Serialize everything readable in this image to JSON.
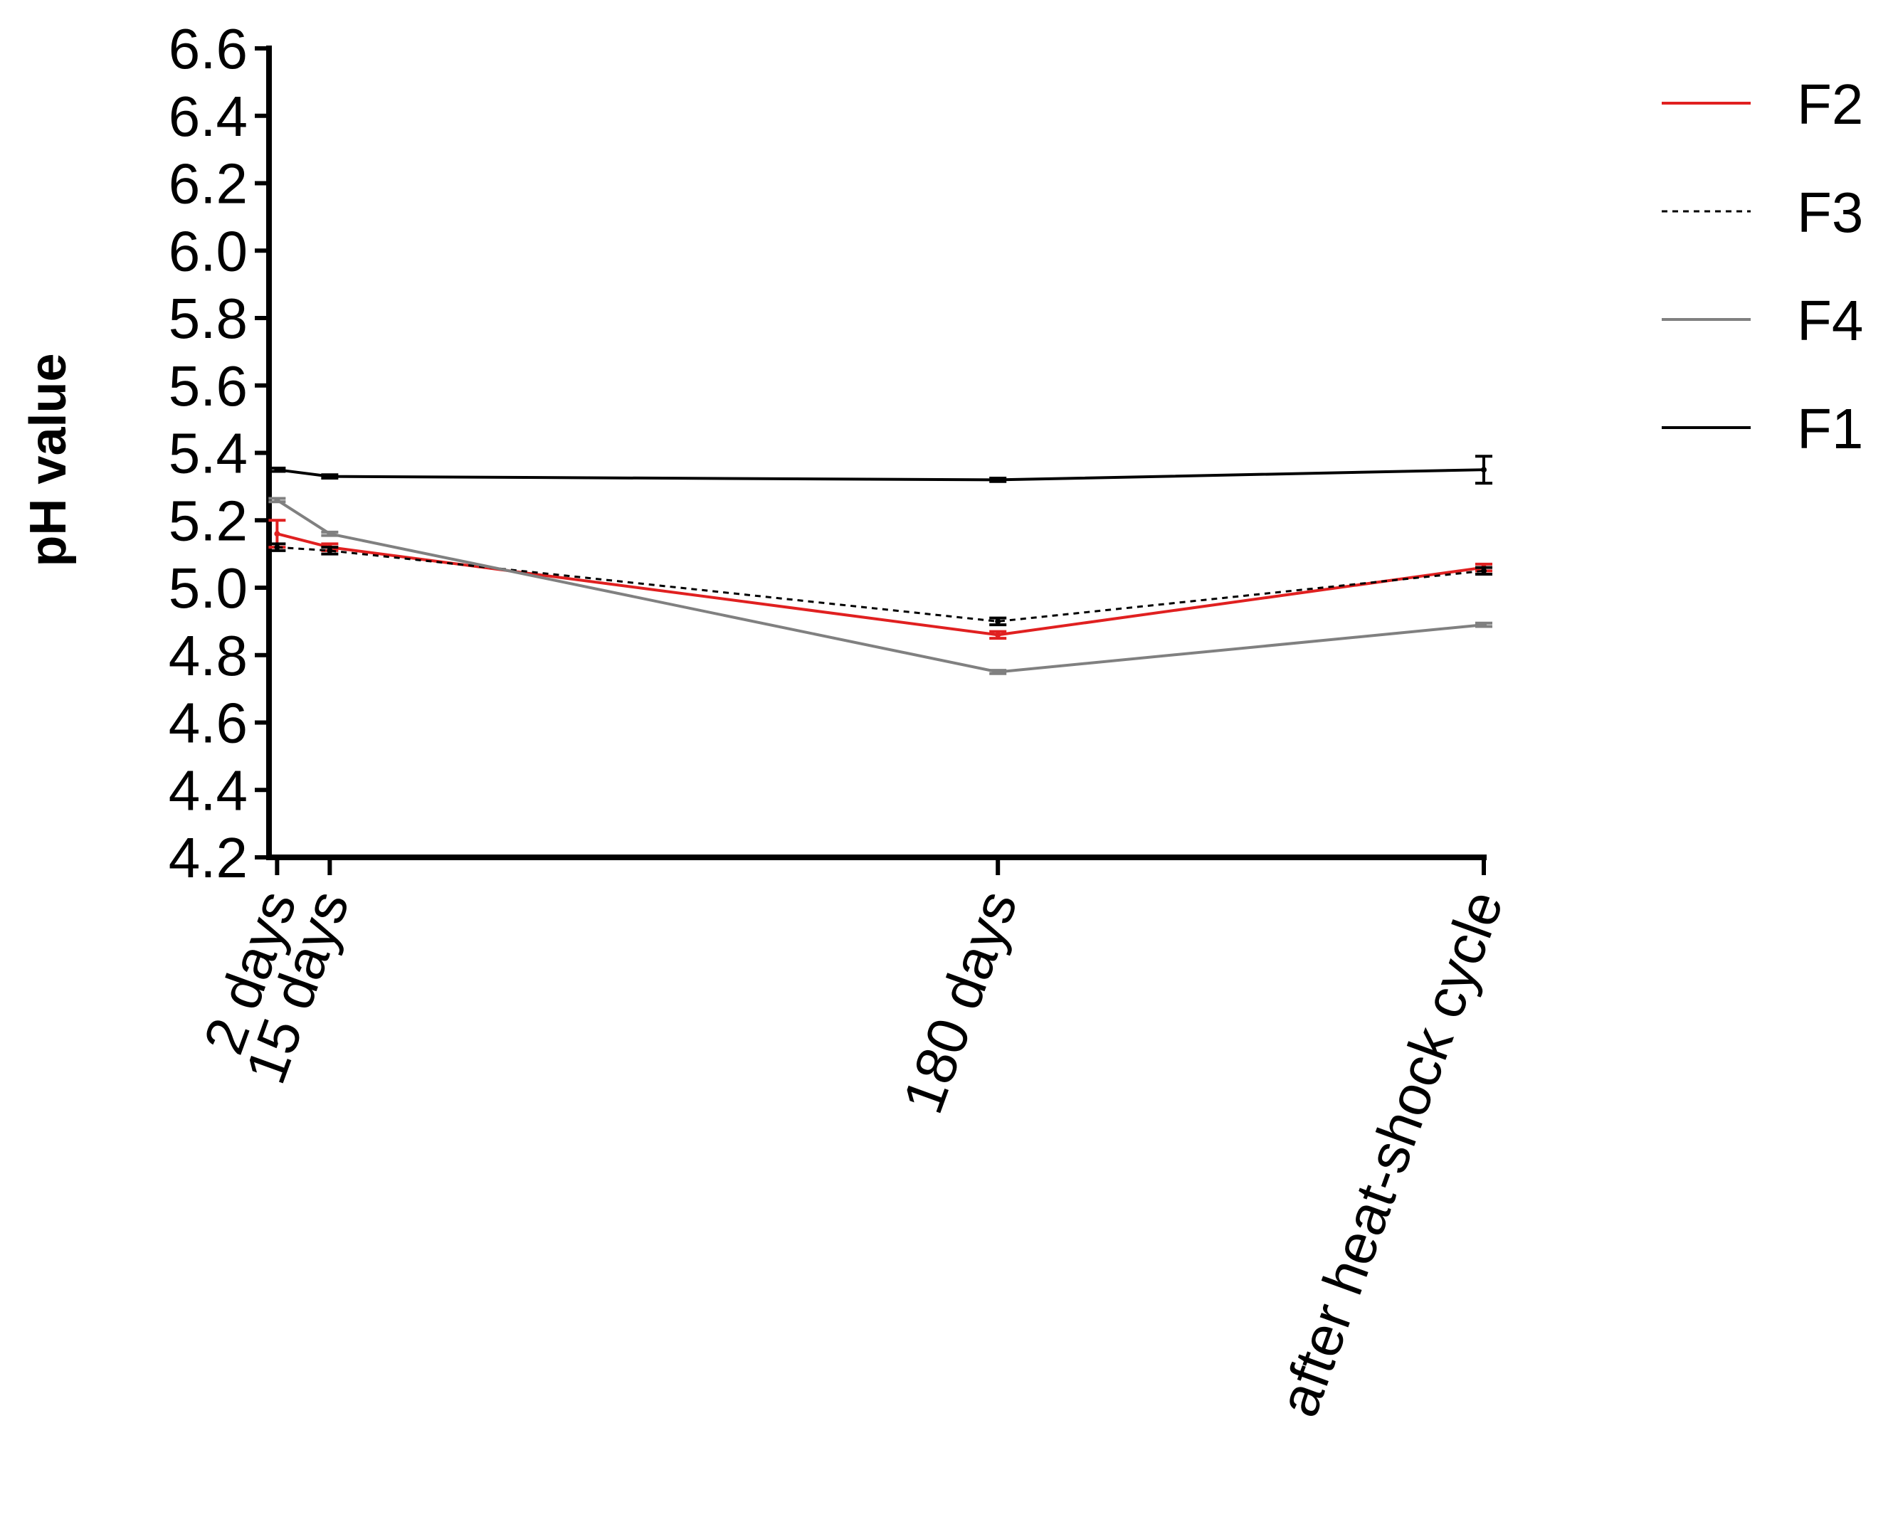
{
  "chart_data": {
    "type": "line",
    "title": "",
    "xlabel": "",
    "ylabel": "pH value",
    "x": [
      2,
      15,
      180,
      300
    ],
    "x_tick_labels": [
      "2 days",
      "15 days",
      "180 days",
      "after heat-shock cycle"
    ],
    "xlim": [
      0,
      300
    ],
    "ylim": [
      4.2,
      6.6
    ],
    "yticks": [
      4.2,
      4.4,
      4.6,
      4.8,
      5.0,
      5.2,
      5.4,
      5.6,
      5.8,
      6.0,
      6.2,
      6.4,
      6.6
    ],
    "ytick_labels": [
      "4.2",
      "4.4",
      "4.6",
      "4.8",
      "5.0",
      "5.2",
      "5.4",
      "5.6",
      "5.8",
      "6.0",
      "6.2",
      "6.4",
      "6.6"
    ],
    "grid": false,
    "legend_position": "top-right",
    "series": [
      {
        "name": "F2",
        "values": [
          5.16,
          5.12,
          4.86,
          5.06
        ],
        "errors": [
          0.04,
          0.01,
          0.01,
          0.01
        ],
        "color": "#e02020",
        "dash": "solid"
      },
      {
        "name": "F3",
        "values": [
          5.12,
          5.11,
          4.9,
          5.05
        ],
        "errors": [
          0.01,
          0.01,
          0.01,
          0.01
        ],
        "color": "#000000",
        "dash": "dotted"
      },
      {
        "name": "F4",
        "values": [
          5.26,
          5.16,
          4.75,
          4.89
        ],
        "errors": [
          0.005,
          0.005,
          0.005,
          0.005
        ],
        "color": "#808080",
        "dash": "solid"
      },
      {
        "name": "F1",
        "values": [
          5.35,
          5.33,
          5.32,
          5.35
        ],
        "errors": [
          0.005,
          0.005,
          0.005,
          0.04
        ],
        "color": "#000000",
        "dash": "solid"
      }
    ]
  }
}
